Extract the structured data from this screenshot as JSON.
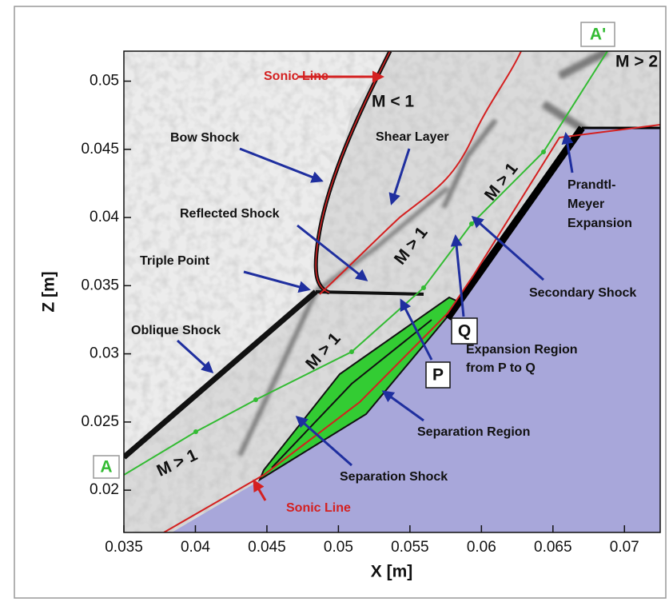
{
  "chart_data": {
    "type": "field",
    "xlabel": "X [m]",
    "ylabel": "Z [m]",
    "xlim": [
      0.035,
      0.0725
    ],
    "ylim": [
      0.0169,
      0.0522
    ],
    "xticks": [
      0.035,
      0.04,
      0.045,
      0.05,
      0.055,
      0.06,
      0.065,
      0.07
    ],
    "yticks": [
      0.02,
      0.025,
      0.03,
      0.035,
      0.04,
      0.045,
      0.05
    ],
    "annotations": [
      "Sonic Line",
      "Bow Shock",
      "M < 1",
      "M > 2",
      "Shear Layer",
      "Reflected Shock",
      "Triple Point",
      "Oblique Shock",
      "M > 1",
      "M > 1",
      "M > 1",
      "M > 1",
      "Prandtl-",
      "Meyer",
      "Expansion",
      "Secondary Shock",
      "Q",
      "P",
      "Expansion Region",
      "from P to Q",
      "Separation Region",
      "Separation Shock",
      "Sonic Line",
      "A",
      "A'"
    ]
  }
}
